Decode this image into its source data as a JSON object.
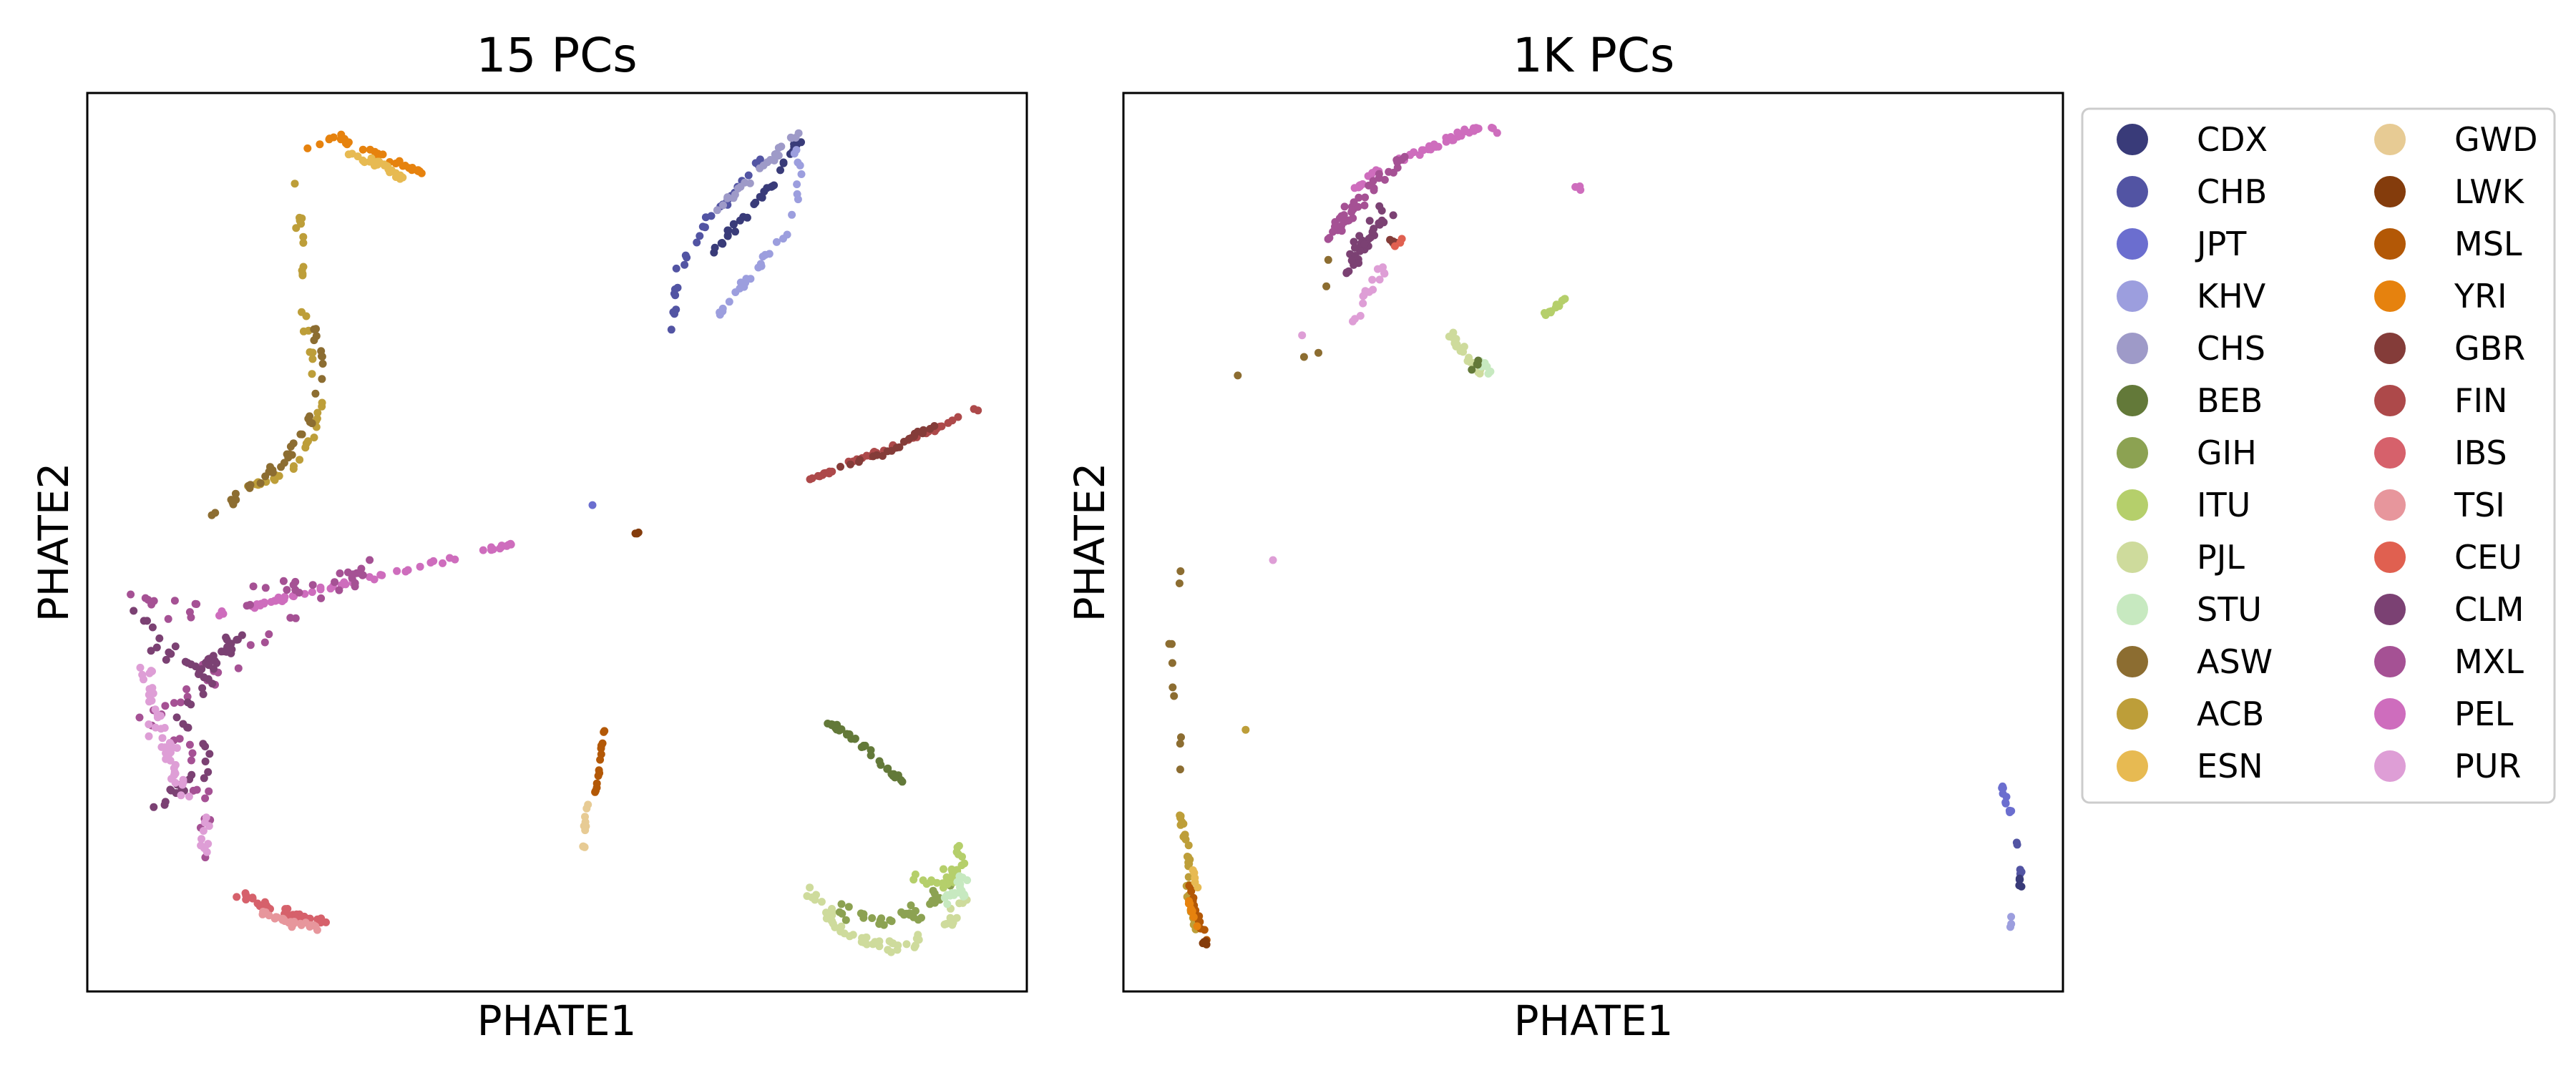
{
  "palette": {
    "CDX": "#393b79",
    "CHB": "#5254a3",
    "JPT": "#6b6ecf",
    "KHV": "#9c9ede",
    "CHS": "#9e9ac8",
    "BEB": "#637939",
    "GIH": "#8ca252",
    "ITU": "#b5cf6b",
    "PJL": "#cedb9c",
    "STU": "#c7e9c0",
    "ASW": "#8c6d31",
    "ACB": "#bd9e39",
    "ESN": "#e7ba52",
    "GWD": "#e7cb94",
    "LWK": "#843c0c",
    "MSL": "#b35806",
    "YRI": "#e6820e",
    "GBR": "#843c39",
    "FIN": "#ad494a",
    "IBS": "#d6616b",
    "TSI": "#e7969c",
    "CEU": "#e06050",
    "CLM": "#7b4173",
    "MXL": "#a55194",
    "PEL": "#ce6dbd",
    "PUR": "#de9ed6"
  },
  "legend": {
    "entries": [
      "CDX",
      "CHB",
      "JPT",
      "KHV",
      "CHS",
      "BEB",
      "GIH",
      "ITU",
      "PJL",
      "STU",
      "ASW",
      "ACB",
      "ESN",
      "GWD",
      "LWK",
      "MSL",
      "YRI",
      "GBR",
      "FIN",
      "IBS",
      "TSI",
      "CEU",
      "CLM",
      "MXL",
      "PEL",
      "PUR"
    ]
  },
  "chart_data": [
    {
      "type": "scatter",
      "title": "15 PCs",
      "xlabel": "PHATE1",
      "ylabel": "PHATE2",
      "xticks": "none",
      "yticks": "none",
      "xlim": [
        0,
        1
      ],
      "ylim": [
        0,
        1
      ],
      "clusters": [
        {
          "group": "YRI",
          "count": 30,
          "spread": 0.006,
          "path": [
            [
              0.23,
              0.94
            ],
            [
              0.27,
              0.95
            ],
            [
              0.31,
              0.93
            ],
            [
              0.36,
              0.91
            ]
          ]
        },
        {
          "group": "ESN",
          "count": 25,
          "spread": 0.007,
          "path": [
            [
              0.28,
              0.93
            ],
            [
              0.32,
              0.92
            ],
            [
              0.34,
              0.9
            ]
          ]
        },
        {
          "group": "ACB",
          "count": 45,
          "spread": 0.006,
          "path": [
            [
              0.22,
              0.9
            ],
            [
              0.23,
              0.82
            ],
            [
              0.23,
              0.76
            ],
            [
              0.24,
              0.7
            ],
            [
              0.25,
              0.66
            ],
            [
              0.24,
              0.62
            ],
            [
              0.22,
              0.58
            ],
            [
              0.17,
              0.56
            ]
          ]
        },
        {
          "group": "ASW",
          "count": 40,
          "spread": 0.006,
          "path": [
            [
              0.24,
              0.74
            ],
            [
              0.25,
              0.7
            ],
            [
              0.24,
              0.64
            ],
            [
              0.21,
              0.59
            ],
            [
              0.16,
              0.55
            ],
            [
              0.13,
              0.53
            ]
          ]
        },
        {
          "group": "CDX",
          "count": 35,
          "spread": 0.006,
          "path": [
            [
              0.66,
              0.82
            ],
            [
              0.7,
              0.86
            ],
            [
              0.73,
              0.9
            ],
            [
              0.76,
              0.95
            ]
          ]
        },
        {
          "group": "CHB",
          "count": 35,
          "spread": 0.006,
          "path": [
            [
              0.62,
              0.73
            ],
            [
              0.63,
              0.8
            ],
            [
              0.66,
              0.86
            ],
            [
              0.69,
              0.89
            ],
            [
              0.72,
              0.93
            ]
          ]
        },
        {
          "group": "KHV",
          "count": 30,
          "spread": 0.006,
          "path": [
            [
              0.67,
              0.75
            ],
            [
              0.71,
              0.8
            ],
            [
              0.75,
              0.86
            ],
            [
              0.76,
              0.91
            ],
            [
              0.75,
              0.95
            ]
          ]
        },
        {
          "group": "CHS",
          "count": 25,
          "spread": 0.006,
          "path": [
            [
              0.67,
              0.87
            ],
            [
              0.7,
              0.9
            ],
            [
              0.73,
              0.93
            ],
            [
              0.76,
              0.96
            ]
          ]
        },
        {
          "group": "JPT",
          "count": 1,
          "spread": 0.002,
          "path": [
            [
              0.538,
              0.54
            ],
            [
              0.538,
              0.54
            ]
          ]
        },
        {
          "group": "LWK",
          "count": 3,
          "spread": 0.002,
          "path": [
            [
              0.583,
              0.51
            ],
            [
              0.588,
              0.51
            ]
          ]
        },
        {
          "group": "FIN",
          "count": 45,
          "spread": 0.004,
          "path": [
            [
              0.77,
              0.57
            ],
            [
              0.84,
              0.6
            ],
            [
              0.89,
              0.62
            ],
            [
              0.95,
              0.65
            ]
          ]
        },
        {
          "group": "GBR",
          "count": 20,
          "spread": 0.004,
          "path": [
            [
              0.79,
              0.58
            ],
            [
              0.85,
              0.6
            ],
            [
              0.9,
              0.63
            ]
          ]
        },
        {
          "group": "PEL",
          "count": 60,
          "spread": 0.004,
          "path": [
            [
              0.14,
              0.42
            ],
            [
              0.22,
              0.44
            ],
            [
              0.3,
              0.46
            ],
            [
              0.38,
              0.48
            ],
            [
              0.46,
              0.5
            ]
          ]
        },
        {
          "group": "MXL",
          "count": 70,
          "spread": 0.015,
          "path": [
            [
              0.05,
              0.44
            ],
            [
              0.1,
              0.42
            ],
            [
              0.18,
              0.44
            ],
            [
              0.3,
              0.47
            ],
            [
              0.06,
              0.3
            ],
            [
              0.12,
              0.26
            ],
            [
              0.13,
              0.15
            ]
          ]
        },
        {
          "group": "CLM",
          "count": 70,
          "spread": 0.017,
          "path": [
            [
              0.05,
              0.42
            ],
            [
              0.08,
              0.38
            ],
            [
              0.13,
              0.36
            ],
            [
              0.16,
              0.4
            ],
            [
              0.1,
              0.31
            ],
            [
              0.13,
              0.26
            ],
            [
              0.07,
              0.2
            ]
          ]
        },
        {
          "group": "PUR",
          "count": 60,
          "spread": 0.015,
          "path": [
            [
              0.06,
              0.36
            ],
            [
              0.08,
              0.28
            ],
            [
              0.09,
              0.24
            ],
            [
              0.12,
              0.19
            ],
            [
              0.13,
              0.15
            ]
          ]
        },
        {
          "group": "IBS",
          "count": 35,
          "spread": 0.006,
          "path": [
            [
              0.16,
              0.11
            ],
            [
              0.2,
              0.09
            ],
            [
              0.24,
              0.08
            ],
            [
              0.26,
              0.075
            ]
          ]
        },
        {
          "group": "TSI",
          "count": 25,
          "spread": 0.006,
          "path": [
            [
              0.18,
              0.09
            ],
            [
              0.22,
              0.075
            ],
            [
              0.25,
              0.07
            ]
          ]
        },
        {
          "group": "MSL",
          "count": 14,
          "spread": 0.002,
          "path": [
            [
              0.54,
              0.21
            ],
            [
              0.545,
              0.25
            ],
            [
              0.55,
              0.29
            ]
          ]
        },
        {
          "group": "GWD",
          "count": 10,
          "spread": 0.002,
          "path": [
            [
              0.528,
              0.16
            ],
            [
              0.53,
              0.19
            ],
            [
              0.532,
              0.21
            ]
          ]
        },
        {
          "group": "BEB",
          "count": 35,
          "spread": 0.004,
          "path": [
            [
              0.79,
              0.3
            ],
            [
              0.83,
              0.27
            ],
            [
              0.86,
              0.24
            ],
            [
              0.87,
              0.23
            ]
          ]
        },
        {
          "group": "PJL",
          "count": 55,
          "spread": 0.012,
          "path": [
            [
              0.77,
              0.11
            ],
            [
              0.81,
              0.06
            ],
            [
              0.86,
              0.05
            ],
            [
              0.91,
              0.06
            ],
            [
              0.93,
              0.1
            ]
          ]
        },
        {
          "group": "GIH",
          "count": 40,
          "spread": 0.012,
          "path": [
            [
              0.8,
              0.09
            ],
            [
              0.85,
              0.08
            ],
            [
              0.89,
              0.09
            ],
            [
              0.92,
              0.12
            ]
          ]
        },
        {
          "group": "ITU",
          "count": 30,
          "spread": 0.012,
          "path": [
            [
              0.88,
              0.13
            ],
            [
              0.91,
              0.12
            ],
            [
              0.93,
              0.14
            ],
            [
              0.92,
              0.17
            ]
          ]
        },
        {
          "group": "STU",
          "count": 20,
          "spread": 0.008,
          "path": [
            [
              0.91,
              0.1
            ],
            [
              0.93,
              0.11
            ],
            [
              0.93,
              0.13
            ]
          ]
        }
      ]
    },
    {
      "type": "scatter",
      "title": "1K PCs",
      "xlabel": "PHATE1",
      "ylabel": "PHATE2",
      "xticks": "none",
      "yticks": "none",
      "xlim": [
        0,
        1
      ],
      "ylim": [
        0,
        1
      ],
      "clusters": [
        {
          "group": "PEL",
          "count": 50,
          "spread": 0.006,
          "path": [
            [
              0.24,
              0.89
            ],
            [
              0.28,
              0.92
            ],
            [
              0.33,
              0.94
            ],
            [
              0.37,
              0.96
            ],
            [
              0.4,
              0.96
            ]
          ]
        },
        {
          "group": "MXL",
          "count": 45,
          "spread": 0.012,
          "path": [
            [
              0.22,
              0.84
            ],
            [
              0.25,
              0.88
            ],
            [
              0.28,
              0.91
            ],
            [
              0.3,
              0.93
            ]
          ]
        },
        {
          "group": "CLM",
          "count": 35,
          "spread": 0.012,
          "path": [
            [
              0.24,
              0.8
            ],
            [
              0.26,
              0.84
            ],
            [
              0.28,
              0.87
            ]
          ]
        },
        {
          "group": "PUR",
          "count": 15,
          "spread": 0.008,
          "path": [
            [
              0.24,
              0.73
            ],
            [
              0.26,
              0.78
            ],
            [
              0.28,
              0.81
            ]
          ]
        },
        {
          "group": "GBR",
          "count": 5,
          "spread": 0.006,
          "path": [
            [
              0.28,
              0.82
            ],
            [
              0.29,
              0.84
            ]
          ]
        },
        {
          "group": "CEU",
          "count": 3,
          "spread": 0.004,
          "path": [
            [
              0.29,
              0.83
            ],
            [
              0.3,
              0.84
            ]
          ]
        },
        {
          "group": "PEL",
          "count": 3,
          "spread": 0.004,
          "path": [
            [
              0.48,
              0.9
            ],
            [
              0.49,
              0.89
            ]
          ]
        },
        {
          "group": "PUR",
          "count": 1,
          "spread": 0.002,
          "path": [
            [
              0.16,
              0.48
            ],
            [
              0.16,
              0.48
            ]
          ]
        },
        {
          "group": "PUR",
          "count": 1,
          "spread": 0.002,
          "path": [
            [
              0.19,
              0.73
            ],
            [
              0.19,
              0.73
            ]
          ]
        },
        {
          "group": "PJL",
          "count": 20,
          "spread": 0.006,
          "path": [
            [
              0.35,
              0.73
            ],
            [
              0.37,
              0.7
            ],
            [
              0.38,
              0.69
            ]
          ]
        },
        {
          "group": "STU",
          "count": 8,
          "spread": 0.006,
          "path": [
            [
              0.38,
              0.7
            ],
            [
              0.39,
              0.69
            ]
          ]
        },
        {
          "group": "BEB",
          "count": 4,
          "spread": 0.004,
          "path": [
            [
              0.37,
              0.69
            ],
            [
              0.38,
              0.7
            ]
          ]
        },
        {
          "group": "ITU",
          "count": 12,
          "spread": 0.004,
          "path": [
            [
              0.44,
              0.75
            ],
            [
              0.46,
              0.76
            ],
            [
              0.47,
              0.77
            ]
          ]
        },
        {
          "group": "ASW",
          "count": 5,
          "spread": 0.003,
          "path": [
            [
              0.11,
              0.68
            ],
            [
              0.14,
              0.7
            ],
            [
              0.21,
              0.71
            ],
            [
              0.22,
              0.86
            ]
          ]
        },
        {
          "group": "ASW",
          "count": 10,
          "spread": 0.004,
          "path": [
            [
              0.06,
              0.47
            ],
            [
              0.05,
              0.39
            ],
            [
              0.05,
              0.35
            ],
            [
              0.06,
              0.28
            ],
            [
              0.06,
              0.2
            ]
          ]
        },
        {
          "group": "ACB",
          "count": 30,
          "spread": 0.004,
          "path": [
            [
              0.06,
              0.2
            ],
            [
              0.07,
              0.15
            ],
            [
              0.07,
              0.1
            ],
            [
              0.08,
              0.06
            ]
          ]
        },
        {
          "group": "MSL",
          "count": 15,
          "spread": 0.004,
          "path": [
            [
              0.07,
              0.12
            ],
            [
              0.08,
              0.08
            ],
            [
              0.09,
              0.05
            ]
          ]
        },
        {
          "group": "YRI",
          "count": 8,
          "spread": 0.004,
          "path": [
            [
              0.07,
              0.1
            ],
            [
              0.08,
              0.07
            ]
          ]
        },
        {
          "group": "ESN",
          "count": 5,
          "spread": 0.004,
          "path": [
            [
              0.07,
              0.15
            ],
            [
              0.08,
              0.11
            ]
          ]
        },
        {
          "group": "LWK",
          "count": 4,
          "spread": 0.004,
          "path": [
            [
              0.085,
              0.06
            ],
            [
              0.09,
              0.05
            ]
          ]
        },
        {
          "group": "ACB",
          "count": 1,
          "spread": 0.002,
          "path": [
            [
              0.13,
              0.29
            ],
            [
              0.13,
              0.29
            ]
          ]
        },
        {
          "group": "JPT",
          "count": 10,
          "spread": 0.003,
          "path": [
            [
              0.935,
              0.23
            ],
            [
              0.94,
              0.21
            ],
            [
              0.945,
              0.2
            ]
          ]
        },
        {
          "group": "CHB",
          "count": 6,
          "spread": 0.003,
          "path": [
            [
              0.95,
              0.17
            ],
            [
              0.953,
              0.15
            ],
            [
              0.955,
              0.12
            ]
          ]
        },
        {
          "group": "CDX",
          "count": 4,
          "spread": 0.003,
          "path": [
            [
              0.953,
              0.13
            ],
            [
              0.955,
              0.11
            ]
          ]
        },
        {
          "group": "KHV",
          "count": 3,
          "spread": 0.003,
          "path": [
            [
              0.945,
              0.09
            ],
            [
              0.945,
              0.07
            ]
          ]
        }
      ]
    }
  ]
}
